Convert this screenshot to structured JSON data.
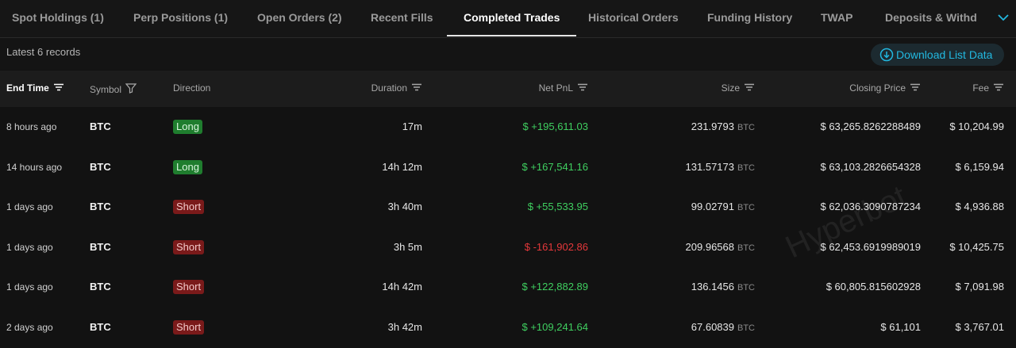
{
  "tabs": [
    "Spot Holdings (1)",
    "Perp Positions (1)",
    "Open Orders (2)",
    "Recent Fills",
    "Completed Trades",
    "Historical Orders",
    "Funding History",
    "TWAP",
    "Deposits & Withdrawals"
  ],
  "active_tab": 4,
  "records_label": "Latest 6 records",
  "download_button": "Download List Data",
  "columns": [
    "End Time",
    "Symbol",
    "Direction",
    "Duration",
    "Net PnL",
    "Size",
    "Closing Price",
    "Fee"
  ],
  "rows": [
    {
      "end_time": "8 hours ago",
      "symbol": "BTC",
      "direction": "Long",
      "duration": "17m",
      "net_pnl": "$ +195,611.03",
      "size": "231.9793",
      "size_unit": "BTC",
      "closing_price": "$ 63,265.8262288489",
      "fee": "$ 10,204.99"
    },
    {
      "end_time": "14 hours ago",
      "symbol": "BTC",
      "direction": "Long",
      "duration": "14h 12m",
      "net_pnl": "$ +167,541.16",
      "size": "131.57173",
      "size_unit": "BTC",
      "closing_price": "$ 63,103.2826654328",
      "fee": "$ 6,159.94"
    },
    {
      "end_time": "1 days ago",
      "symbol": "BTC",
      "direction": "Short",
      "duration": "3h 40m",
      "net_pnl": "$ +55,533.95",
      "size": "99.02791",
      "size_unit": "BTC",
      "closing_price": "$ 62,036.3090787234",
      "fee": "$ 4,936.88"
    },
    {
      "end_time": "1 days ago",
      "symbol": "BTC",
      "direction": "Short",
      "duration": "3h 5m",
      "net_pnl": "$ -161,902.86",
      "size": "209.96568",
      "size_unit": "BTC",
      "closing_price": "$ 62,453.6919989019",
      "fee": "$ 10,425.75"
    },
    {
      "end_time": "1 days ago",
      "symbol": "BTC",
      "direction": "Short",
      "duration": "14h 42m",
      "net_pnl": "$ +122,882.89",
      "size": "136.1456",
      "size_unit": "BTC",
      "closing_price": "$ 60,805.815602928",
      "fee": "$ 7,091.98"
    },
    {
      "end_time": "2 days ago",
      "symbol": "BTC",
      "direction": "Short",
      "duration": "3h 42m",
      "net_pnl": "$ +109,241.64",
      "size": "67.60839",
      "size_unit": "BTC",
      "closing_price": "$ 61,101",
      "fee": "$ 3,767.01"
    }
  ],
  "watermark": "Hyperbot"
}
